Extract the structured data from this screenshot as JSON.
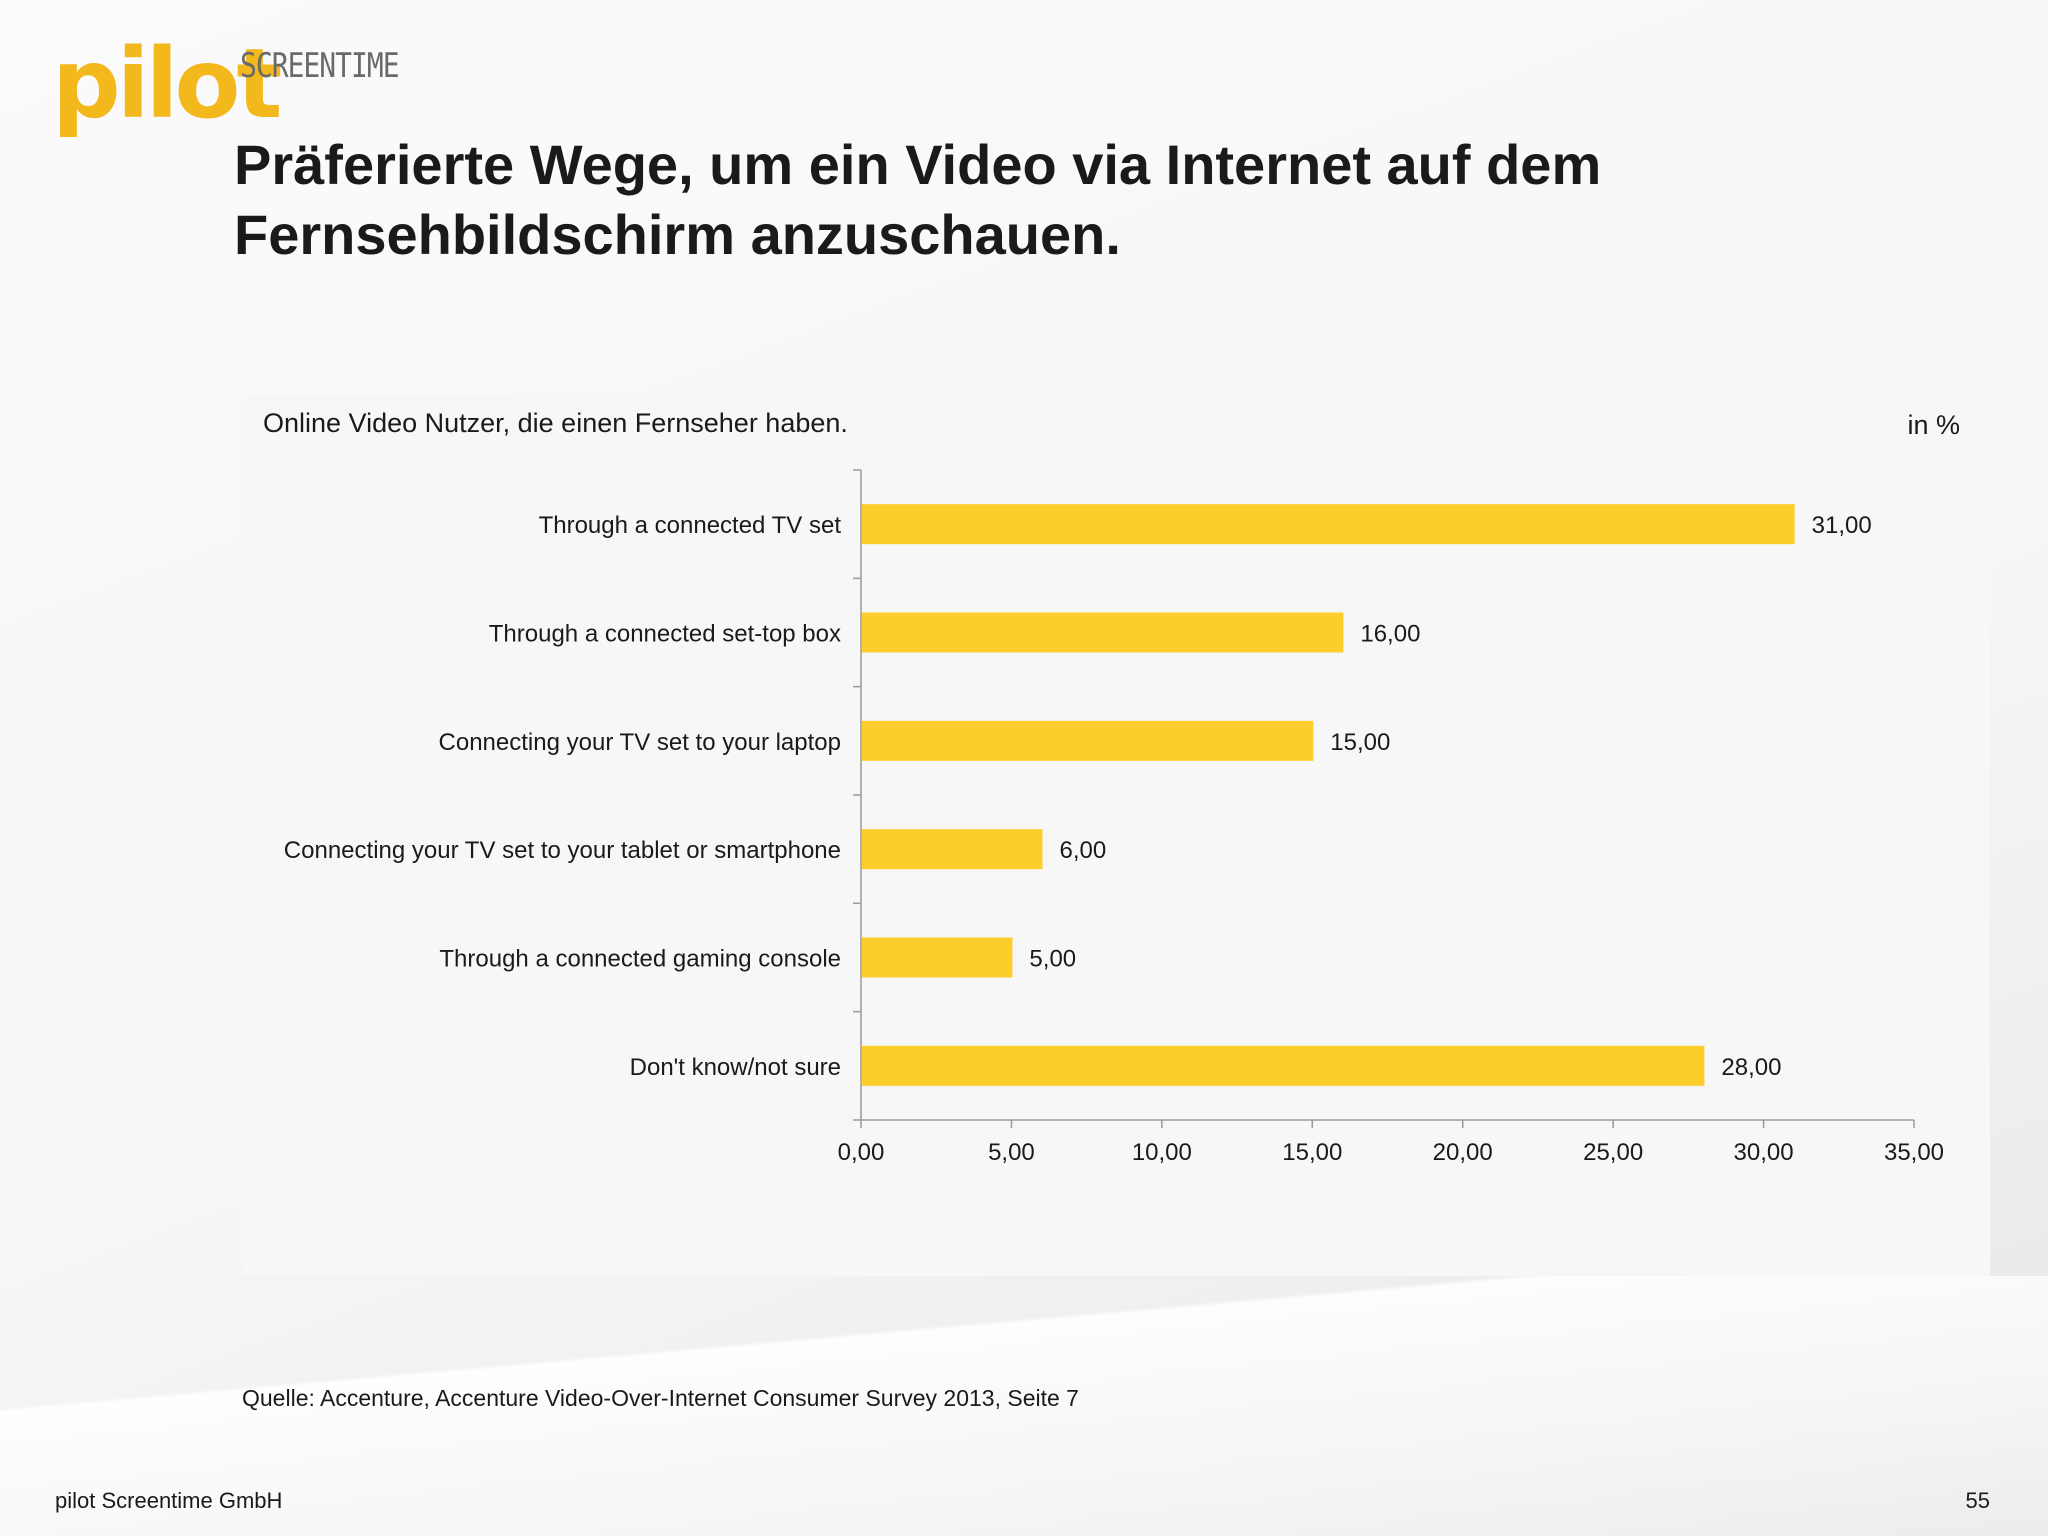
{
  "logo": {
    "word": "pilot",
    "sub": "SCREENTIME"
  },
  "title": "Präferierte Wege, um ein Video via Internet auf dem Fernsehbildschirm anzuschauen.",
  "chart_data": {
    "type": "bar",
    "orientation": "horizontal",
    "subtitle": "Online Video Nutzer, die einen Fernseher haben.",
    "unit_label": "in %",
    "categories": [
      "Through a connected TV set",
      "Through a connected set-top box",
      "Connecting your TV set to your laptop",
      "Connecting your TV set to your tablet or smartphone",
      "Through a connected gaming console",
      "Don't know/not sure"
    ],
    "values": [
      31,
      16,
      15,
      6,
      5,
      28
    ],
    "value_labels": [
      "31,00",
      "16,00",
      "15,00",
      "6,00",
      "5,00",
      "28,00"
    ],
    "xlim": [
      0,
      35
    ],
    "xticks": [
      0,
      5,
      10,
      15,
      20,
      25,
      30,
      35
    ],
    "xtick_labels": [
      "0,00",
      "5,00",
      "10,00",
      "15,00",
      "20,00",
      "25,00",
      "30,00",
      "35,00"
    ],
    "bar_color": "#fccd2b",
    "grid": false
  },
  "source": "Quelle: Accenture, Accenture Video-Over-Internet Consumer Survey 2013, Seite 7",
  "footer": {
    "company": "pilot Screentime GmbH",
    "page": "55"
  }
}
